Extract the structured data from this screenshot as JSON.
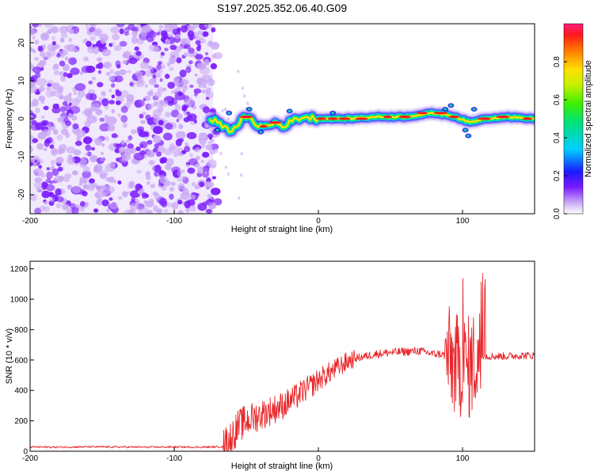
{
  "title": "S197.2025.352.06.40.G09",
  "colors": {
    "snr_line": "#e8262a",
    "spectro_track_core": "#ff1a1a",
    "spectro_track_mid": "#ffe000",
    "spectro_track_outer": "#00e07a",
    "spectro_track_edge": "#1a1aff",
    "noise_dark": "#7a1aff",
    "noise_light": "#c9a8f5"
  },
  "chart_data": [
    {
      "type": "heatmap",
      "name": "spectrogram",
      "xlabel": "Height of straight line (km)",
      "ylabel": "Frequency (Hz)",
      "xlim": [
        -200,
        150
      ],
      "ylim": [
        -25,
        25
      ],
      "xticks": [
        -200,
        -100,
        0,
        100
      ],
      "yticks": [
        -20,
        -10,
        0,
        10,
        20
      ],
      "noise_region_x": [
        -200,
        -73
      ],
      "track": [
        {
          "x": -75,
          "y": -1
        },
        {
          "x": -70,
          "y": -0.5
        },
        {
          "x": -65,
          "y": -2.5
        },
        {
          "x": -60,
          "y": -3
        },
        {
          "x": -55,
          "y": -1
        },
        {
          "x": -50,
          "y": 0.5
        },
        {
          "x": -45,
          "y": -1
        },
        {
          "x": -40,
          "y": -2
        },
        {
          "x": -35,
          "y": -2
        },
        {
          "x": -30,
          "y": -1
        },
        {
          "x": -25,
          "y": -2
        },
        {
          "x": -20,
          "y": -1
        },
        {
          "x": -15,
          "y": 0
        },
        {
          "x": -10,
          "y": 0.5
        },
        {
          "x": 0,
          "y": 0
        },
        {
          "x": 20,
          "y": 0
        },
        {
          "x": 40,
          "y": 0.5
        },
        {
          "x": 60,
          "y": 0.5
        },
        {
          "x": 80,
          "y": 1.5
        },
        {
          "x": 90,
          "y": 1
        },
        {
          "x": 95,
          "y": 0.5
        },
        {
          "x": 105,
          "y": -1
        },
        {
          "x": 115,
          "y": 0
        },
        {
          "x": 130,
          "y": 0.5
        },
        {
          "x": 150,
          "y": 0
        }
      ],
      "colorbar": {
        "label": "Normalized spectral amplitude",
        "range": [
          0,
          1
        ],
        "ticks": [
          "0.0",
          "0.2",
          "0.4",
          "0.6",
          "0.8"
        ],
        "ticks_values": [
          0,
          0.2,
          0.4,
          0.6,
          0.8
        ]
      }
    },
    {
      "type": "line",
      "name": "snr",
      "xlabel": "Height of straight line (km)",
      "ylabel": "SNR (10 * v/v)",
      "xlim": [
        -200,
        150
      ],
      "ylim": [
        0,
        1250
      ],
      "xticks": [
        -200,
        -100,
        0,
        100
      ],
      "yticks": [
        0,
        200,
        400,
        600,
        800,
        1000,
        1200
      ],
      "series": [
        {
          "name": "SNR",
          "x": [
            -200,
            -180,
            -160,
            -140,
            -120,
            -100,
            -80,
            -66,
            -60,
            -55,
            -50,
            -45,
            -40,
            -35,
            -30,
            -25,
            -20,
            -15,
            -10,
            -5,
            0,
            5,
            10,
            15,
            20,
            25,
            30,
            40,
            50,
            60,
            70,
            80,
            85,
            90,
            95,
            100,
            105,
            110,
            115,
            120,
            130,
            140,
            150
          ],
          "y": [
            28,
            27,
            29,
            28,
            27,
            28,
            27,
            30,
            100,
            170,
            200,
            220,
            240,
            260,
            280,
            300,
            330,
            360,
            400,
            430,
            470,
            500,
            530,
            560,
            590,
            610,
            620,
            640,
            650,
            655,
            660,
            640,
            640,
            620,
            560,
            560,
            550,
            620,
            625,
            625,
            625,
            630,
            630
          ]
        }
      ]
    }
  ]
}
